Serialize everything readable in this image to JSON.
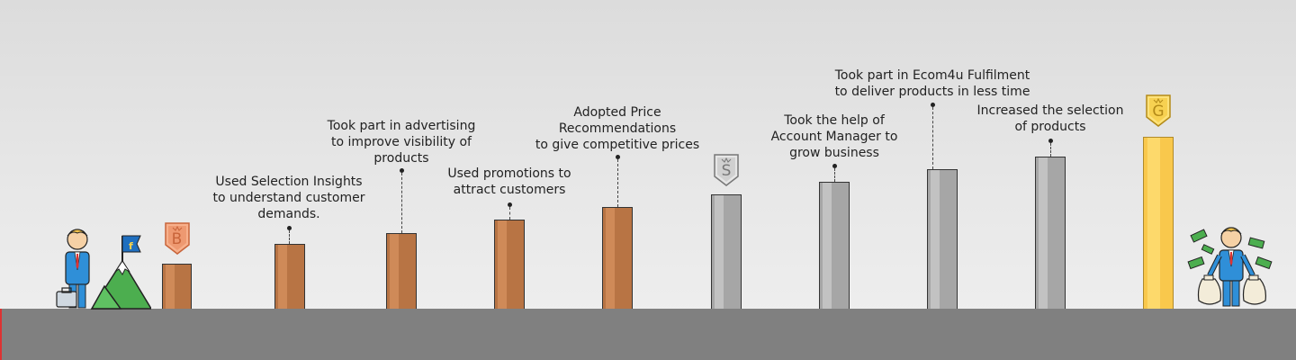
{
  "milestones": [
    {
      "tier": "bronze",
      "caption": ""
    },
    {
      "tier": "bronze",
      "caption": "Used Selection Insights\nto understand customer\ndemands."
    },
    {
      "tier": "bronze",
      "caption": "Took part in advertising\nto improve visibility of\nproducts"
    },
    {
      "tier": "bronze",
      "caption": "Used promotions to\nattract customers"
    },
    {
      "tier": "bronze",
      "caption": "Adopted Price\nRecommendations\nto give competitive prices"
    },
    {
      "tier": "silver",
      "caption": ""
    },
    {
      "tier": "silver",
      "caption": "Took the help of\nAccount Manager to\ngrow business"
    },
    {
      "tier": "silver",
      "caption": "Took part in Ecom4u Fulfilment\nto deliver products in less time"
    },
    {
      "tier": "silver",
      "caption": "Increased the selection\nof products"
    },
    {
      "tier": "gold",
      "caption": ""
    }
  ],
  "badges": {
    "bronze": "B",
    "silver": "S",
    "gold": "G"
  },
  "flag_letter": "f",
  "colors": {
    "bronze": "#b87444",
    "silver": "#a6a6a6",
    "gold": "#f9c84c",
    "ground": "#808080",
    "suit": "#2f8fd8"
  },
  "icons": [
    "businessman-icon",
    "briefcase-icon",
    "mountain-icon",
    "flag-icon",
    "rich-businessman-icon",
    "money-bag-icon",
    "banknote-icon"
  ]
}
